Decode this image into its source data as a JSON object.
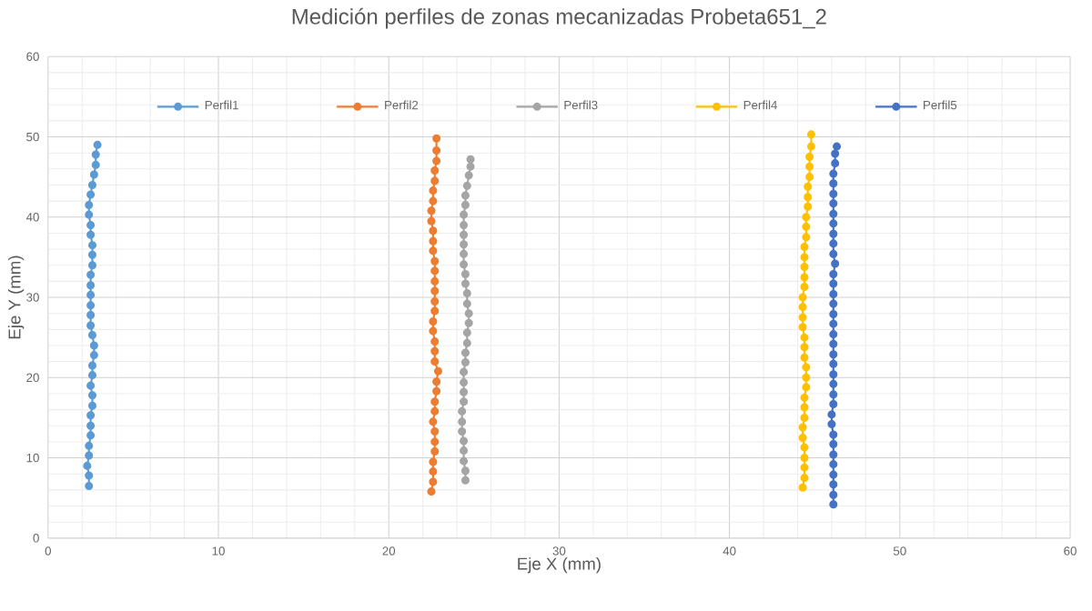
{
  "chart_data": {
    "type": "line",
    "title": "Medición perfiles de zonas mecanizadas Probeta651_2",
    "xlabel": "Eje X (mm)",
    "ylabel": "Eje Y (mm)",
    "xlim": [
      0,
      60
    ],
    "ylim": [
      0,
      60
    ],
    "xticks": [
      0,
      10,
      20,
      30,
      40,
      50,
      60
    ],
    "yticks": [
      0,
      10,
      20,
      30,
      40,
      50,
      60
    ],
    "grid": true,
    "legend": "top",
    "marker": "circle",
    "line_style": "solid",
    "series": [
      {
        "name": "Perfil1",
        "color": "#5b9bd5",
        "x": [
          2.4,
          2.4,
          2.3,
          2.4,
          2.4,
          2.5,
          2.5,
          2.5,
          2.6,
          2.6,
          2.5,
          2.6,
          2.6,
          2.7,
          2.7,
          2.6,
          2.5,
          2.5,
          2.5,
          2.5,
          2.5,
          2.5,
          2.6,
          2.6,
          2.6,
          2.5,
          2.5,
          2.4,
          2.4,
          2.5,
          2.6,
          2.7,
          2.8,
          2.8,
          2.9
        ],
        "values": [
          6.5,
          7.8,
          9.0,
          10.3,
          11.5,
          12.8,
          14.0,
          15.3,
          16.5,
          17.8,
          19.0,
          20.3,
          21.5,
          22.8,
          24.0,
          25.3,
          26.5,
          27.8,
          29.0,
          30.3,
          31.5,
          32.8,
          34.0,
          35.3,
          36.5,
          37.8,
          39.0,
          40.3,
          41.5,
          42.8,
          44.0,
          45.3,
          46.5,
          47.8,
          49.0
        ]
      },
      {
        "name": "Perfil2",
        "color": "#ed7d31",
        "x": [
          22.5,
          22.6,
          22.6,
          22.6,
          22.7,
          22.7,
          22.7,
          22.6,
          22.7,
          22.7,
          22.8,
          22.8,
          22.9,
          22.7,
          22.7,
          22.7,
          22.6,
          22.6,
          22.7,
          22.7,
          22.7,
          22.7,
          22.7,
          22.7,
          22.6,
          22.6,
          22.6,
          22.5,
          22.5,
          22.6,
          22.6,
          22.7,
          22.7,
          22.8,
          22.8,
          22.8
        ],
        "values": [
          5.8,
          7.0,
          8.3,
          9.5,
          10.8,
          12.0,
          13.3,
          14.5,
          15.8,
          17.0,
          18.3,
          19.5,
          20.8,
          22.0,
          23.3,
          24.5,
          25.8,
          27.0,
          28.3,
          29.5,
          30.8,
          32.0,
          33.3,
          34.5,
          35.8,
          37.0,
          38.3,
          39.5,
          40.8,
          42.0,
          43.3,
          44.5,
          45.8,
          47.0,
          48.3,
          49.8
        ]
      },
      {
        "name": "Perfil3",
        "color": "#a5a5a5",
        "x": [
          24.5,
          24.5,
          24.4,
          24.4,
          24.4,
          24.3,
          24.3,
          24.3,
          24.4,
          24.4,
          24.4,
          24.4,
          24.5,
          24.5,
          24.6,
          24.6,
          24.7,
          24.7,
          24.6,
          24.6,
          24.5,
          24.5,
          24.4,
          24.4,
          24.4,
          24.4,
          24.4,
          24.4,
          24.5,
          24.5,
          24.6,
          24.7,
          24.8,
          24.8
        ],
        "values": [
          7.2,
          8.4,
          9.6,
          10.9,
          12.1,
          13.3,
          14.5,
          15.8,
          17.0,
          18.2,
          19.4,
          20.7,
          21.9,
          23.1,
          24.3,
          25.6,
          26.8,
          28.0,
          29.2,
          30.5,
          31.7,
          32.9,
          34.1,
          35.4,
          36.6,
          37.8,
          39.0,
          40.3,
          41.5,
          42.7,
          43.9,
          45.2,
          46.3,
          47.2
        ]
      },
      {
        "name": "Perfil4",
        "color": "#ffc000",
        "x": [
          44.3,
          44.4,
          44.4,
          44.4,
          44.4,
          44.3,
          44.3,
          44.4,
          44.4,
          44.4,
          44.5,
          44.5,
          44.5,
          44.4,
          44.4,
          44.4,
          44.3,
          44.3,
          44.3,
          44.3,
          44.4,
          44.4,
          44.4,
          44.4,
          44.4,
          44.5,
          44.5,
          44.5,
          44.6,
          44.6,
          44.6,
          44.7,
          44.7,
          44.7,
          44.8,
          44.8
        ],
        "values": [
          6.3,
          7.5,
          8.8,
          10.0,
          11.3,
          12.5,
          13.8,
          15.0,
          16.3,
          17.5,
          18.8,
          20.0,
          21.3,
          22.5,
          23.8,
          25.0,
          26.3,
          27.5,
          28.8,
          30.0,
          31.3,
          32.5,
          33.8,
          35.0,
          36.3,
          37.5,
          38.8,
          40.0,
          41.3,
          42.5,
          43.8,
          45.0,
          46.3,
          47.5,
          48.8,
          50.3
        ]
      },
      {
        "name": "Perfil5",
        "color": "#4472c4",
        "x": [
          46.1,
          46.1,
          46.1,
          46.1,
          46.1,
          46.1,
          46.1,
          46.1,
          46.0,
          46.0,
          46.1,
          46.1,
          46.1,
          46.1,
          46.1,
          46.1,
          46.1,
          46.1,
          46.1,
          46.1,
          46.1,
          46.1,
          46.1,
          46.1,
          46.2,
          46.1,
          46.1,
          46.1,
          46.1,
          46.1,
          46.1,
          46.1,
          46.1,
          46.1,
          46.2,
          46.2,
          46.3
        ],
        "values": [
          4.2,
          5.4,
          6.7,
          7.9,
          9.2,
          10.4,
          11.7,
          12.9,
          14.2,
          15.4,
          16.7,
          17.9,
          19.2,
          20.4,
          21.7,
          22.9,
          24.2,
          25.4,
          26.7,
          27.9,
          29.2,
          30.4,
          31.7,
          32.9,
          34.2,
          35.4,
          36.7,
          37.9,
          39.2,
          40.4,
          41.7,
          42.9,
          44.2,
          45.4,
          46.7,
          47.9,
          48.8
        ]
      }
    ]
  }
}
